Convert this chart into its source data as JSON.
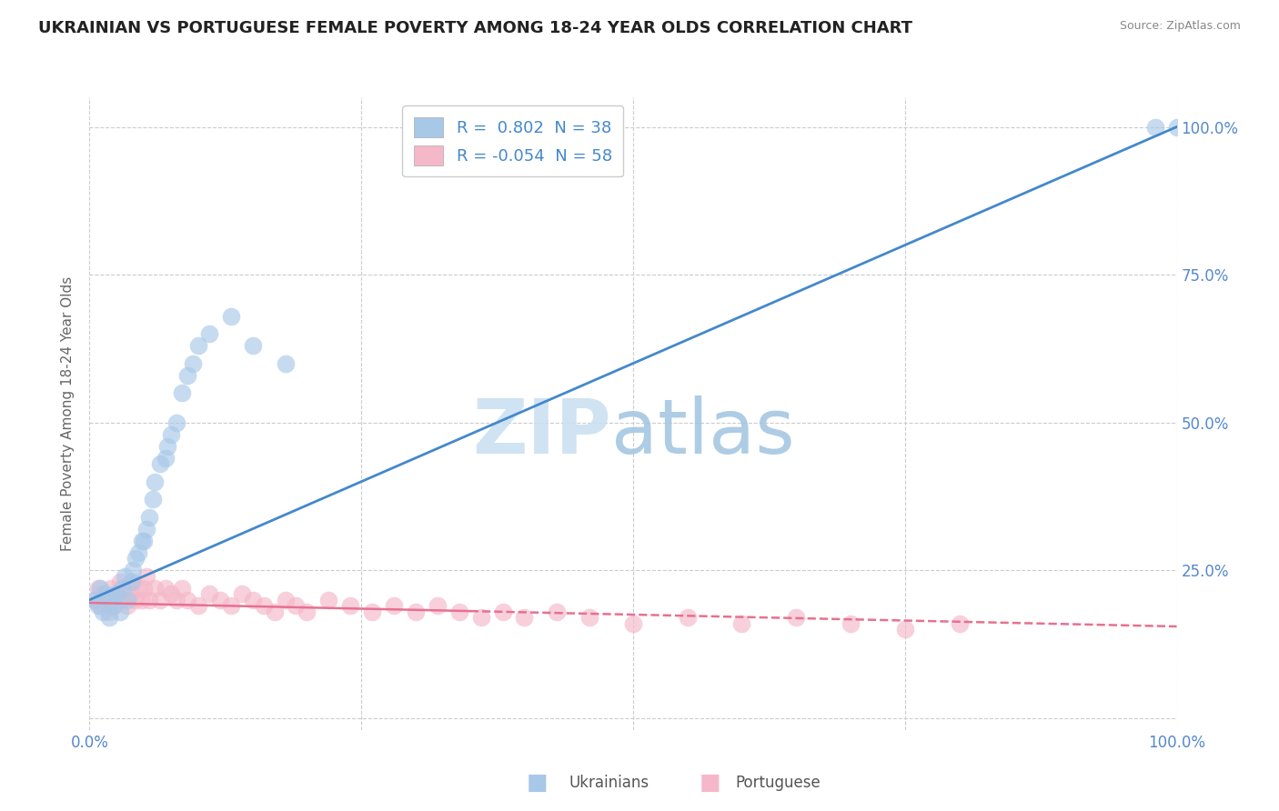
{
  "title": "UKRAINIAN VS PORTUGUESE FEMALE POVERTY AMONG 18-24 YEAR OLDS CORRELATION CHART",
  "source": "Source: ZipAtlas.com",
  "ylabel": "Female Poverty Among 18-24 Year Olds",
  "xlim": [
    0,
    1
  ],
  "ylim": [
    -0.02,
    1.05
  ],
  "xticks": [
    0.0,
    0.25,
    0.5,
    0.75,
    1.0
  ],
  "xticklabels": [
    "0.0%",
    "",
    "",
    "",
    "100.0%"
  ],
  "yticks": [
    0.0,
    0.25,
    0.5,
    0.75,
    1.0
  ],
  "yticklabels_right": [
    "",
    "25.0%",
    "50.0%",
    "75.0%",
    "100.0%"
  ],
  "legend_r_blue": "R =  0.802",
  "legend_n_blue": "N = 38",
  "legend_r_pink": "R = -0.054",
  "legend_n_pink": "N = 58",
  "blue_color": "#a8c8e8",
  "pink_color": "#f4b8c8",
  "trend_blue_color": "#4488cc",
  "trend_pink_color": "#e87090",
  "watermark_zip_color": "#c8dff0",
  "watermark_atlas_color": "#a0c4e0",
  "background_color": "#ffffff",
  "grid_color": "#cccccc",
  "tick_label_color": "#5588cc",
  "title_color": "#222222",
  "source_color": "#888888",
  "ylabel_color": "#666666",
  "bottom_label_color": "#555555",
  "blue_scatter_x": [
    0.005,
    0.008,
    0.01,
    0.012,
    0.015,
    0.018,
    0.02,
    0.022,
    0.025,
    0.028,
    0.03,
    0.032,
    0.035,
    0.038,
    0.04,
    0.042,
    0.045,
    0.048,
    0.05,
    0.052,
    0.055,
    0.058,
    0.06,
    0.065,
    0.07,
    0.072,
    0.075,
    0.08,
    0.085,
    0.09,
    0.095,
    0.1,
    0.11,
    0.13,
    0.15,
    0.18,
    0.98,
    1.0
  ],
  "blue_scatter_y": [
    0.2,
    0.19,
    0.22,
    0.18,
    0.21,
    0.17,
    0.2,
    0.19,
    0.21,
    0.18,
    0.22,
    0.24,
    0.2,
    0.23,
    0.25,
    0.27,
    0.28,
    0.3,
    0.3,
    0.32,
    0.34,
    0.37,
    0.4,
    0.43,
    0.44,
    0.46,
    0.48,
    0.5,
    0.55,
    0.58,
    0.6,
    0.63,
    0.65,
    0.68,
    0.63,
    0.6,
    1.0,
    1.0
  ],
  "pink_scatter_x": [
    0.005,
    0.008,
    0.01,
    0.012,
    0.015,
    0.018,
    0.02,
    0.022,
    0.025,
    0.028,
    0.03,
    0.032,
    0.035,
    0.038,
    0.04,
    0.042,
    0.045,
    0.048,
    0.05,
    0.052,
    0.055,
    0.06,
    0.065,
    0.07,
    0.075,
    0.08,
    0.085,
    0.09,
    0.1,
    0.11,
    0.12,
    0.13,
    0.14,
    0.15,
    0.16,
    0.17,
    0.18,
    0.19,
    0.2,
    0.22,
    0.24,
    0.26,
    0.28,
    0.3,
    0.32,
    0.34,
    0.36,
    0.38,
    0.4,
    0.43,
    0.46,
    0.5,
    0.55,
    0.6,
    0.65,
    0.7,
    0.75,
    0.8
  ],
  "pink_scatter_y": [
    0.2,
    0.22,
    0.19,
    0.21,
    0.2,
    0.18,
    0.22,
    0.19,
    0.21,
    0.23,
    0.2,
    0.22,
    0.19,
    0.21,
    0.23,
    0.2,
    0.22,
    0.2,
    0.22,
    0.24,
    0.2,
    0.22,
    0.2,
    0.22,
    0.21,
    0.2,
    0.22,
    0.2,
    0.19,
    0.21,
    0.2,
    0.19,
    0.21,
    0.2,
    0.19,
    0.18,
    0.2,
    0.19,
    0.18,
    0.2,
    0.19,
    0.18,
    0.19,
    0.18,
    0.19,
    0.18,
    0.17,
    0.18,
    0.17,
    0.18,
    0.17,
    0.16,
    0.17,
    0.16,
    0.17,
    0.16,
    0.15,
    0.16
  ],
  "trend_blue_x0": 0.0,
  "trend_blue_y0": 0.2,
  "trend_blue_x1": 1.0,
  "trend_blue_y1": 1.0,
  "trend_pink_x0": 0.0,
  "trend_pink_y0": 0.195,
  "trend_pink_x1": 1.0,
  "trend_pink_y1": 0.155,
  "trend_pink_solid_end": 0.35
}
